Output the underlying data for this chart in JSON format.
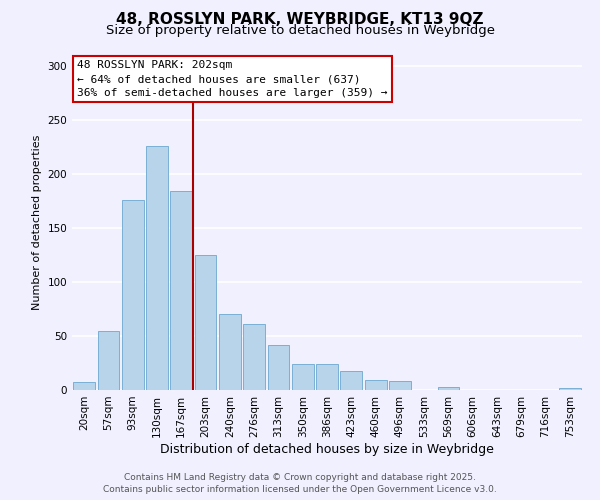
{
  "title": "48, ROSSLYN PARK, WEYBRIDGE, KT13 9QZ",
  "subtitle": "Size of property relative to detached houses in Weybridge",
  "xlabel": "Distribution of detached houses by size in Weybridge",
  "ylabel": "Number of detached properties",
  "categories": [
    "20sqm",
    "57sqm",
    "93sqm",
    "130sqm",
    "167sqm",
    "203sqm",
    "240sqm",
    "276sqm",
    "313sqm",
    "350sqm",
    "386sqm",
    "423sqm",
    "460sqm",
    "496sqm",
    "533sqm",
    "569sqm",
    "606sqm",
    "643sqm",
    "679sqm",
    "716sqm",
    "753sqm"
  ],
  "values": [
    7,
    55,
    176,
    226,
    184,
    125,
    70,
    61,
    42,
    24,
    24,
    18,
    9,
    8,
    0,
    3,
    0,
    0,
    0,
    0,
    2
  ],
  "bar_color": "#b8d4ea",
  "bar_edge_color": "#7aafd4",
  "vline_color": "#aa0000",
  "vline_index": 4.5,
  "annotation_title": "48 ROSSLYN PARK: 202sqm",
  "annotation_line1": "← 64% of detached houses are smaller (637)",
  "annotation_line2": "36% of semi-detached houses are larger (359) →",
  "annotation_box_color": "#ffffff",
  "annotation_box_edge": "#cc0000",
  "ylim": [
    0,
    310
  ],
  "yticks": [
    0,
    50,
    100,
    150,
    200,
    250,
    300
  ],
  "footer1": "Contains HM Land Registry data © Crown copyright and database right 2025.",
  "footer2": "Contains public sector information licensed under the Open Government Licence v3.0.",
  "background_color": "#f0f0ff",
  "plot_bg_color": "#f0f0ff",
  "grid_color": "#ffffff",
  "title_fontsize": 11,
  "subtitle_fontsize": 9.5,
  "xlabel_fontsize": 9,
  "ylabel_fontsize": 8,
  "tick_fontsize": 7.5,
  "annotation_fontsize": 8,
  "footer_fontsize": 6.5
}
